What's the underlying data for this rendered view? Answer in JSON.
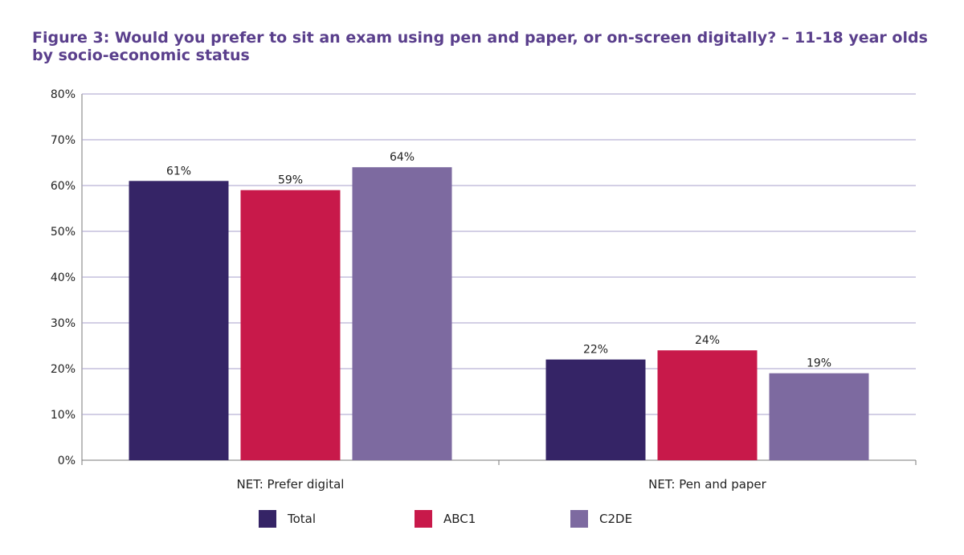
{
  "page": {
    "title": "Figure 3: Would you prefer to sit an exam using pen and paper, or on-screen digitally? – 11-18 year olds by socio-economic status"
  },
  "colors": {
    "title": "#5a3f8c",
    "gridline": "#a79fcb",
    "axis": "#7a7a7a"
  },
  "chart_data": {
    "type": "bar",
    "title": "Figure 3: Would you prefer to sit an exam using pen and paper, or on-screen digitally? – 11-18 year olds by socio-economic status",
    "categories": [
      "NET: Prefer digital",
      "NET: Pen and paper"
    ],
    "series": [
      {
        "name": "Total",
        "values": [
          61,
          22
        ],
        "labels": [
          "61%",
          "22%"
        ],
        "color": "#352466"
      },
      {
        "name": "ABC1",
        "values": [
          59,
          24
        ],
        "labels": [
          "59%",
          "24%"
        ],
        "color": "#c8194a"
      },
      {
        "name": "C2DE",
        "values": [
          64,
          19
        ],
        "labels": [
          "64%",
          "19%"
        ],
        "color": "#7d6aa0"
      }
    ],
    "ylim": [
      0,
      80
    ],
    "yticks": [
      "0%",
      "10%",
      "20%",
      "30%",
      "40%",
      "50%",
      "60%",
      "70%",
      "80%"
    ],
    "ytick_values": [
      0,
      10,
      20,
      30,
      40,
      50,
      60,
      70,
      80
    ],
    "grid": true,
    "legend_position": "bottom"
  }
}
